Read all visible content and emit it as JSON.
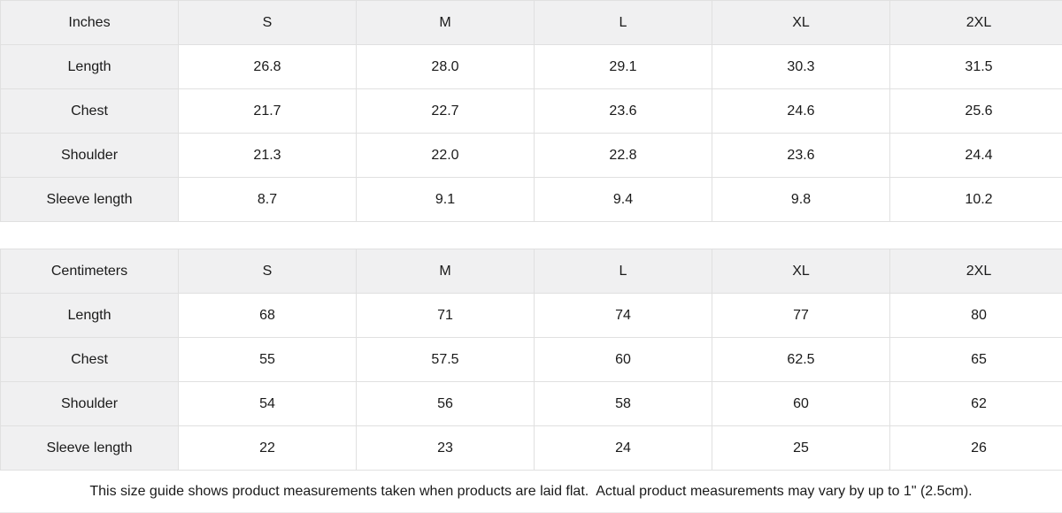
{
  "colors": {
    "header_bg": "#f0f0f1",
    "cell_bg": "#ffffff",
    "border": "#e0e0e0",
    "text": "#1a1a1a"
  },
  "tables": [
    {
      "unit_label": "Inches",
      "sizes": [
        "S",
        "M",
        "L",
        "XL",
        "2XL"
      ],
      "rows": [
        {
          "label": "Length",
          "values": [
            "26.8",
            "28.0",
            "29.1",
            "30.3",
            "31.5"
          ]
        },
        {
          "label": "Chest",
          "values": [
            "21.7",
            "22.7",
            "23.6",
            "24.6",
            "25.6"
          ]
        },
        {
          "label": "Shoulder",
          "values": [
            "21.3",
            "22.0",
            "22.8",
            "23.6",
            "24.4"
          ]
        },
        {
          "label": "Sleeve length",
          "values": [
            "8.7",
            "9.1",
            "9.4",
            "9.8",
            "10.2"
          ]
        }
      ]
    },
    {
      "unit_label": "Centimeters",
      "sizes": [
        "S",
        "M",
        "L",
        "XL",
        "2XL"
      ],
      "rows": [
        {
          "label": "Length",
          "values": [
            "68",
            "71",
            "74",
            "77",
            "80"
          ]
        },
        {
          "label": "Chest",
          "values": [
            "55",
            "57.5",
            "60",
            "62.5",
            "65"
          ]
        },
        {
          "label": "Shoulder",
          "values": [
            "54",
            "56",
            "58",
            "60",
            "62"
          ]
        },
        {
          "label": "Sleeve length",
          "values": [
            "22",
            "23",
            "24",
            "25",
            "26"
          ]
        }
      ]
    }
  ],
  "footer": {
    "note": "This size guide shows product measurements taken when products are laid flat.  Actual product measurements may vary by up to 1\" (2.5cm)."
  }
}
